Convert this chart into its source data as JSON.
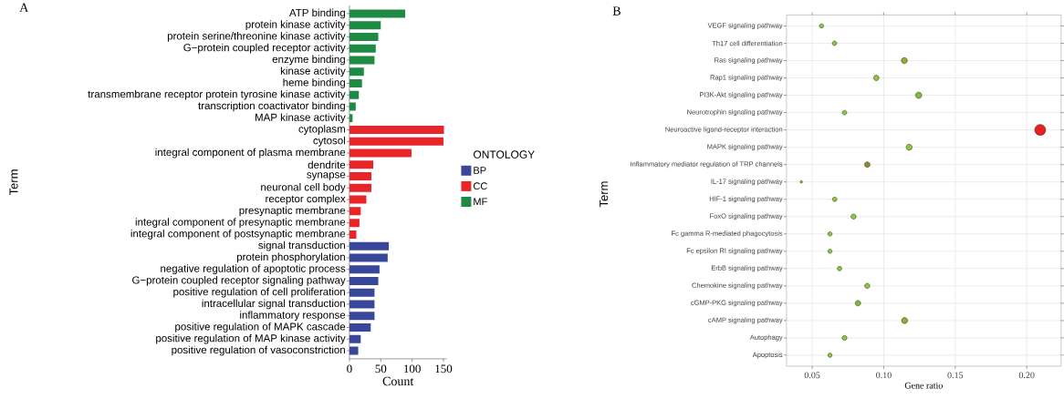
{
  "chart_data": [
    {
      "type": "bar",
      "title": "A",
      "orientation": "horizontal",
      "xlabel": "Count",
      "ylabel": "Term",
      "legend_title": "ONTOLOGY",
      "legend": "right",
      "categories": [
        "ATP binding",
        "protein kinase activity",
        "protein serine/threonine kinase activity",
        "G−protein coupled receptor activity",
        "enzyme binding",
        "kinase activity",
        "heme binding",
        "transmembrane receptor protein tyrosine kinase activity",
        "transcription coactivator binding",
        "MAP kinase activity",
        "cytoplasm",
        "cytosol",
        "integral component of plasma membrane",
        "dendrite",
        "synapse",
        "neuronal cell body",
        "receptor complex",
        "presynaptic membrane",
        "integral component of presynaptic membrane",
        "integral component of postsynaptic membrane",
        "signal transduction",
        "protein phosphorylation",
        "negative regulation of apoptotic process",
        "G−protein coupled receptor signaling pathway",
        "positive regulation of cell proliferation",
        "intracellular signal transduction",
        "inflammatory response",
        "positive regulation of MAPK cascade",
        "positive regulation of MAP kinase activity",
        "positive regulation of vasoconstriction"
      ],
      "series": [
        {
          "name": "BP",
          "color": "#39479a",
          "values": [
            null,
            null,
            null,
            null,
            null,
            null,
            null,
            null,
            null,
            null,
            null,
            null,
            null,
            null,
            null,
            null,
            null,
            null,
            null,
            null,
            63,
            61,
            48,
            46,
            40,
            40,
            40,
            34,
            18,
            14
          ]
        },
        {
          "name": "CC",
          "color": "#e8262a",
          "values": [
            null,
            null,
            null,
            null,
            null,
            null,
            null,
            null,
            null,
            null,
            151,
            150,
            99,
            38,
            35,
            35,
            27,
            18,
            16,
            11,
            null,
            null,
            null,
            null,
            null,
            null,
            null,
            null,
            null,
            null
          ]
        },
        {
          "name": "MF",
          "color": "#1f8a44",
          "values": [
            89,
            50,
            46,
            42,
            40,
            23,
            20,
            15,
            10,
            5,
            null,
            null,
            null,
            null,
            null,
            null,
            null,
            null,
            null,
            null,
            null,
            null,
            null,
            null,
            null,
            null,
            null,
            null,
            null,
            null
          ]
        }
      ],
      "xlim": [
        0,
        155
      ],
      "xticks": [
        0,
        50,
        100,
        150
      ]
    },
    {
      "type": "bubble",
      "title": "B",
      "orientation": "horizontal",
      "xlabel": "Gene ratio",
      "ylabel": "Term",
      "grid": true,
      "categories": [
        "VEGF signaling pathway",
        "Th17 cell differentiation",
        "Ras signaling pathway",
        "Rap1 signaling pathway",
        "PI3K-Akt signaling pathway",
        "Neurotrophin signaling pathway",
        "Neuroactive ligand-receptor interaction",
        "MAPK signaling pathway",
        "Inflammatory mediator regulation of TRP channels",
        "IL-17 signaling pathway",
        "HIF-1 signaling pathway",
        "FoxO signaling pathway",
        "Fc gamma R-mediated phagocytosis",
        "Fc epsilon RI signaling pathway",
        "ErbB signaling pathway",
        "Chemokine signaling pathway",
        "cGMP-PKG signaling pathway",
        "cAMP signaling pathway",
        "Autophagy",
        "Apoptosis"
      ],
      "values": [
        0.0565,
        0.0656,
        0.1144,
        0.0948,
        0.1244,
        0.0726,
        0.2094,
        0.1178,
        0.0885,
        0.0424,
        0.0657,
        0.0789,
        0.0624,
        0.0624,
        0.0691,
        0.0885,
        0.082,
        0.1146,
        0.0726,
        0.0624
      ],
      "sizes": [
        0.15,
        0.17,
        0.3,
        0.25,
        0.33,
        0.17,
        1,
        0.3,
        0.25,
        0.05,
        0.17,
        0.22,
        0.15,
        0.15,
        0.17,
        0.22,
        0.25,
        0.3,
        0.2,
        0.15
      ],
      "colors": [
        "#8dc63f",
        "#8dc63f",
        "#9ea82a",
        "#8dc63f",
        "#7cbd3a",
        "#8dc63f",
        "#e8221e",
        "#8dc63f",
        "#8f8a2a",
        "#8dc63f",
        "#8dc63f",
        "#8dc63f",
        "#8dc63f",
        "#8dc63f",
        "#8dc63f",
        "#8dc63f",
        "#7cbd3a",
        "#9ea82a",
        "#8dc63f",
        "#8dc63f"
      ],
      "xlim": [
        0.032,
        0.224
      ],
      "xticks": [
        {
          "value": 0.05,
          "label": "0.05"
        },
        {
          "value": 0.1,
          "label": "0.10"
        },
        {
          "value": 0.15,
          "label": "0.15"
        },
        {
          "value": 0.2,
          "label": "0.20"
        }
      ]
    }
  ]
}
